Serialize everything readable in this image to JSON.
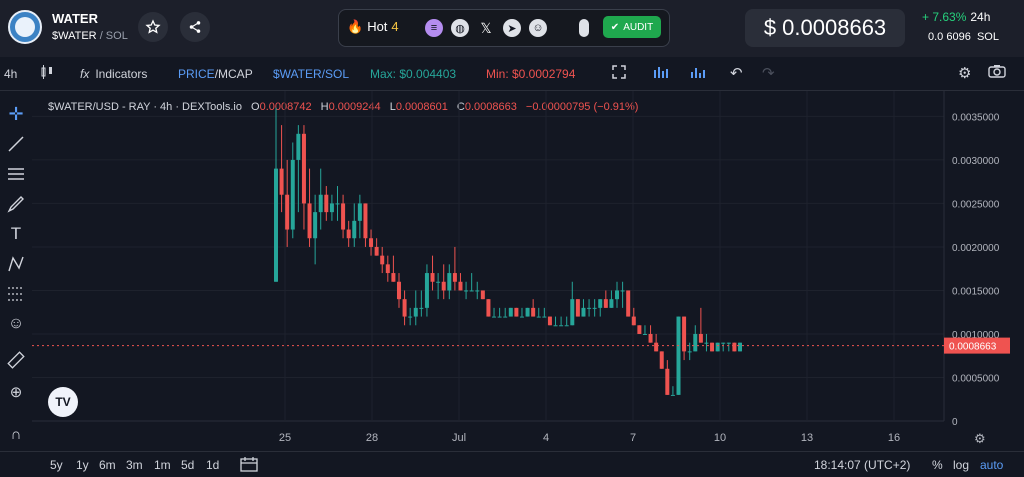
{
  "token": {
    "name": "WATER",
    "symbol": "$WATER",
    "quote": "/ SOL"
  },
  "hot": {
    "label": "Hot",
    "rank": "4"
  },
  "audit_label": "AUDIT",
  "price": {
    "usd": "$ 0.0008663",
    "change": "+ 7.63%",
    "period": "24h",
    "sol_value": "0.0 6096",
    "sol_unit": "SOL"
  },
  "toolbar": {
    "interval": "4h",
    "indicators": "Indicators",
    "price_label": "PRICE",
    "mcap_label": "/MCAP",
    "pair": "$WATER/SOL",
    "max": "Max: $0.004403",
    "min": "Min: $0.0002794"
  },
  "legend": {
    "title": "$WATER/USD - RAY · 4h · DEXTools.io",
    "o_k": "O",
    "o": "0.0008742",
    "h_k": "H",
    "h": "0.0009244",
    "l_k": "L",
    "l": "0.0008601",
    "c_k": "C",
    "c": "0.0008663",
    "chg": "−0.00000795 (−0.91%)"
  },
  "colors": {
    "up": "#26a69a",
    "down": "#ef5350",
    "bg": "#131722",
    "accent": "#2962ff"
  },
  "bottom": {
    "ranges": [
      "5y",
      "1y",
      "6m",
      "3m",
      "1m",
      "5d",
      "1d"
    ],
    "time": "18:14:07 (UTC+2)",
    "pct": "%",
    "log": "log",
    "auto": "auto"
  },
  "chart_data": {
    "type": "candlestick",
    "title": "$WATER/USD - RAY · 4h · DEXTools.io",
    "ylim": [
      0,
      0.0037
    ],
    "y_ticks": [
      "0.0035000",
      "0.0030000",
      "0.0025000",
      "0.0020000",
      "0.0015000",
      "0.0010000",
      "0.0005000",
      "0"
    ],
    "y_tick_values": [
      0.0035,
      0.003,
      0.0025,
      0.002,
      0.0015,
      0.001,
      0.0005,
      0
    ],
    "x_ticks": [
      "25",
      "28",
      "Jul",
      "4",
      "7",
      "10",
      "13",
      "16"
    ],
    "current_price_label": "0.0008663",
    "current_price": 0.0008663,
    "candles": [
      [
        0.0016,
        0.0036,
        0.0016,
        0.0029
      ],
      [
        0.0029,
        0.0034,
        0.0024,
        0.0026
      ],
      [
        0.0026,
        0.003,
        0.002,
        0.0022
      ],
      [
        0.0022,
        0.0032,
        0.0021,
        0.003
      ],
      [
        0.003,
        0.0034,
        0.0024,
        0.0033
      ],
      [
        0.0033,
        0.0034,
        0.0022,
        0.0025
      ],
      [
        0.0025,
        0.0029,
        0.002,
        0.0021
      ],
      [
        0.0021,
        0.0026,
        0.0018,
        0.0024
      ],
      [
        0.0024,
        0.0029,
        0.0022,
        0.0026
      ],
      [
        0.0026,
        0.0027,
        0.0023,
        0.0024
      ],
      [
        0.0024,
        0.0026,
        0.0023,
        0.0025
      ],
      [
        0.0025,
        0.0027,
        0.0023,
        0.0025
      ],
      [
        0.0025,
        0.0026,
        0.0021,
        0.0022
      ],
      [
        0.0022,
        0.0023,
        0.002,
        0.0021
      ],
      [
        0.0021,
        0.0025,
        0.002,
        0.0023
      ],
      [
        0.0023,
        0.0026,
        0.0021,
        0.0025
      ],
      [
        0.0025,
        0.0025,
        0.002,
        0.0021
      ],
      [
        0.0021,
        0.0022,
        0.0019,
        0.002
      ],
      [
        0.002,
        0.0021,
        0.0019,
        0.0019
      ],
      [
        0.0019,
        0.002,
        0.0017,
        0.0018
      ],
      [
        0.0018,
        0.0019,
        0.0016,
        0.0017
      ],
      [
        0.0017,
        0.0019,
        0.0016,
        0.0016
      ],
      [
        0.0016,
        0.0017,
        0.0013,
        0.0014
      ],
      [
        0.0014,
        0.0015,
        0.0011,
        0.0012
      ],
      [
        0.0012,
        0.0013,
        0.0011,
        0.0012
      ],
      [
        0.0012,
        0.0015,
        0.0011,
        0.0013
      ],
      [
        0.0013,
        0.0015,
        0.0012,
        0.0013
      ],
      [
        0.0013,
        0.0018,
        0.0012,
        0.0017
      ],
      [
        0.0017,
        0.0019,
        0.0015,
        0.0016
      ],
      [
        0.0016,
        0.0017,
        0.0014,
        0.0016
      ],
      [
        0.0016,
        0.0018,
        0.0014,
        0.0015
      ],
      [
        0.0015,
        0.0018,
        0.0014,
        0.0017
      ],
      [
        0.0017,
        0.002,
        0.0015,
        0.0016
      ],
      [
        0.0016,
        0.0017,
        0.0015,
        0.0015
      ],
      [
        0.0015,
        0.0016,
        0.0014,
        0.0015
      ],
      [
        0.0015,
        0.0017,
        0.0015,
        0.0015
      ],
      [
        0.0015,
        0.0016,
        0.0014,
        0.0015
      ],
      [
        0.0015,
        0.0015,
        0.0014,
        0.0014
      ],
      [
        0.0014,
        0.0014,
        0.0012,
        0.0012
      ],
      [
        0.0012,
        0.0013,
        0.0012,
        0.0012
      ],
      [
        0.0012,
        0.0013,
        0.0012,
        0.0012
      ],
      [
        0.0012,
        0.0013,
        0.0012,
        0.0012
      ],
      [
        0.0012,
        0.0013,
        0.0012,
        0.0013
      ],
      [
        0.0013,
        0.0013,
        0.0012,
        0.0012
      ],
      [
        0.0012,
        0.0013,
        0.0012,
        0.0012
      ],
      [
        0.0012,
        0.0013,
        0.0012,
        0.0013
      ],
      [
        0.0013,
        0.0014,
        0.0012,
        0.0012
      ],
      [
        0.0012,
        0.0013,
        0.0012,
        0.0012
      ],
      [
        0.0012,
        0.0013,
        0.0012,
        0.0012
      ],
      [
        0.0012,
        0.0012,
        0.0011,
        0.0011
      ],
      [
        0.0011,
        0.0012,
        0.0011,
        0.0011
      ],
      [
        0.0011,
        0.0012,
        0.0011,
        0.0011
      ],
      [
        0.0011,
        0.0012,
        0.0011,
        0.0011
      ],
      [
        0.0011,
        0.0016,
        0.0011,
        0.0014
      ],
      [
        0.0014,
        0.0014,
        0.0012,
        0.0012
      ],
      [
        0.0012,
        0.0014,
        0.0012,
        0.0013
      ],
      [
        0.0013,
        0.0014,
        0.0012,
        0.0013
      ],
      [
        0.0013,
        0.0014,
        0.0012,
        0.0013
      ],
      [
        0.0013,
        0.0014,
        0.0012,
        0.0014
      ],
      [
        0.0014,
        0.0015,
        0.0013,
        0.0013
      ],
      [
        0.0013,
        0.0015,
        0.0013,
        0.0014
      ],
      [
        0.0014,
        0.0016,
        0.0013,
        0.0015
      ],
      [
        0.0015,
        0.0016,
        0.0013,
        0.0015
      ],
      [
        0.0015,
        0.0015,
        0.0012,
        0.0012
      ],
      [
        0.0012,
        0.0013,
        0.0011,
        0.0011
      ],
      [
        0.0011,
        0.0011,
        0.001,
        0.001
      ],
      [
        0.001,
        0.0011,
        0.001,
        0.001
      ],
      [
        0.001,
        0.0011,
        0.0009,
        0.0009
      ],
      [
        0.0009,
        0.001,
        0.0008,
        0.0008
      ],
      [
        0.0008,
        0.0008,
        0.0006,
        0.0006
      ],
      [
        0.0006,
        0.0007,
        0.0003,
        0.0003
      ],
      [
        0.0003,
        0.0004,
        0.0003,
        0.0003
      ],
      [
        0.0003,
        0.0012,
        0.0003,
        0.0012
      ],
      [
        0.0012,
        0.0012,
        0.0007,
        0.0008
      ],
      [
        0.0008,
        0.0009,
        0.0007,
        0.0008
      ],
      [
        0.0008,
        0.0011,
        0.0008,
        0.001
      ],
      [
        0.001,
        0.0013,
        0.0009,
        0.0009
      ],
      [
        0.0009,
        0.001,
        0.0008,
        0.0009
      ],
      [
        0.0009,
        0.0009,
        0.0008,
        0.0008
      ],
      [
        0.0008,
        0.0009,
        0.0008,
        0.0009
      ],
      [
        0.0009,
        0.0009,
        0.0008,
        0.0009
      ],
      [
        0.0009,
        0.0009,
        0.0008,
        0.0009
      ],
      [
        0.0009,
        0.0009,
        0.0008,
        0.0008
      ],
      [
        0.0008,
        0.0009,
        0.0008,
        0.0009
      ]
    ]
  }
}
